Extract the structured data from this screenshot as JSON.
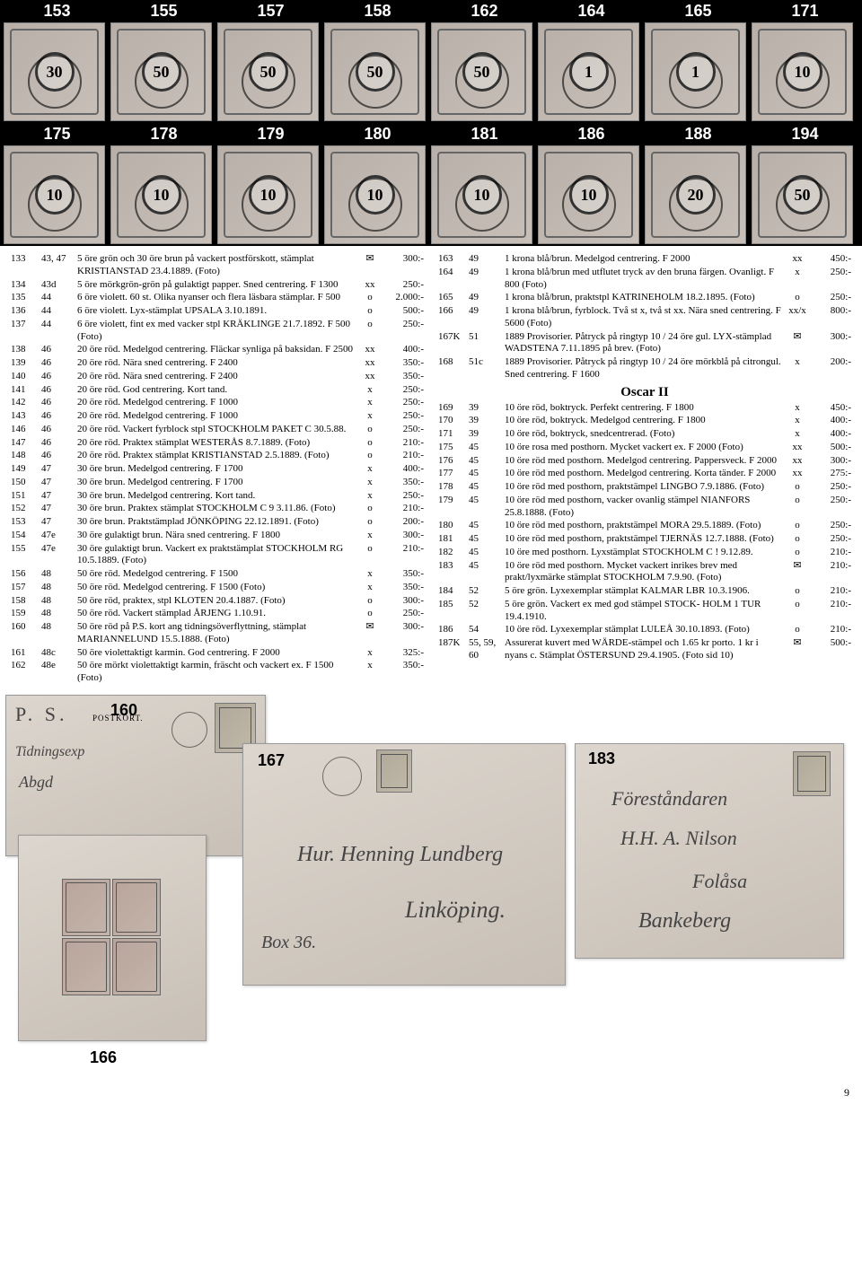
{
  "stamps_row1": [
    {
      "num": "153",
      "val": "30"
    },
    {
      "num": "155",
      "val": "50"
    },
    {
      "num": "157",
      "val": "50"
    },
    {
      "num": "158",
      "val": "50"
    },
    {
      "num": "162",
      "val": "50"
    },
    {
      "num": "164",
      "val": "1"
    },
    {
      "num": "165",
      "val": "1"
    },
    {
      "num": "171",
      "val": "10"
    }
  ],
  "stamps_row2": [
    {
      "num": "175",
      "val": "10"
    },
    {
      "num": "178",
      "val": "10"
    },
    {
      "num": "179",
      "val": "10"
    },
    {
      "num": "180",
      "val": "10"
    },
    {
      "num": "181",
      "val": "10"
    },
    {
      "num": "186",
      "val": "10"
    },
    {
      "num": "188",
      "val": "20"
    },
    {
      "num": "194",
      "val": "50"
    }
  ],
  "left": [
    {
      "lot": "133",
      "fac": "43, 47",
      "desc": "5 öre grön och 30 öre brun på vackert postförskott, stämplat KRISTIANSTAD 23.4.1889. (Foto)",
      "sym": "✉",
      "price": "300:-"
    },
    {
      "lot": "134",
      "fac": "43d",
      "desc": "5 öre mörkgrön-grön på gulaktigt papper. Sned centrering. F 1300",
      "sym": "xx",
      "price": "250:-"
    },
    {
      "lot": "135",
      "fac": "44",
      "desc": "6 öre violett. 60 st. Olika nyanser och flera läsbara stämplar. F 500",
      "sym": "o",
      "price": "2.000:-"
    },
    {
      "lot": "136",
      "fac": "44",
      "desc": "6 öre violett. Lyx-stämplat UPSALA 3.10.1891.",
      "sym": "o",
      "price": "500:-"
    },
    {
      "lot": "137",
      "fac": "44",
      "desc": "6 öre violett, fint ex med vacker stpl KRÄKLINGE 21.7.1892. F 500 (Foto)",
      "sym": "o",
      "price": "250:-"
    },
    {
      "lot": "138",
      "fac": "46",
      "desc": "20 öre röd. Medelgod centrering. Fläckar synliga på baksidan. F 2500",
      "sym": "xx",
      "price": "400:-"
    },
    {
      "lot": "139",
      "fac": "46",
      "desc": "20 öre röd. Nära sned centrering. F 2400",
      "sym": "xx",
      "price": "350:-"
    },
    {
      "lot": "140",
      "fac": "46",
      "desc": "20 öre röd. Nära sned centrering. F 2400",
      "sym": "xx",
      "price": "350:-"
    },
    {
      "lot": "141",
      "fac": "46",
      "desc": "20 öre röd. God centrering. Kort tand.",
      "sym": "x",
      "price": "250:-"
    },
    {
      "lot": "142",
      "fac": "46",
      "desc": "20 öre röd. Medelgod centrering. F 1000",
      "sym": "x",
      "price": "250:-"
    },
    {
      "lot": "143",
      "fac": "46",
      "desc": "20 öre röd. Medelgod centrering. F 1000",
      "sym": "x",
      "price": "250:-"
    },
    {
      "lot": "146",
      "fac": "46",
      "desc": "20 öre röd. Vackert fyrblock stpl STOCKHOLM PAKET C 30.5.88.",
      "sym": "o",
      "price": "250:-"
    },
    {
      "lot": "147",
      "fac": "46",
      "desc": "20 öre röd. Praktex stämplat WESTERÅS 8.7.1889. (Foto)",
      "sym": "o",
      "price": "210:-"
    },
    {
      "lot": "148",
      "fac": "46",
      "desc": "20 öre röd. Praktex stämplat KRISTIANSTAD 2.5.1889. (Foto)",
      "sym": "o",
      "price": "210:-"
    },
    {
      "lot": "149",
      "fac": "47",
      "desc": "30 öre brun. Medelgod centrering. F 1700",
      "sym": "x",
      "price": "400:-"
    },
    {
      "lot": "150",
      "fac": "47",
      "desc": "30 öre brun. Medelgod centrering. F 1700",
      "sym": "x",
      "price": "350:-"
    },
    {
      "lot": "151",
      "fac": "47",
      "desc": "30 öre brun. Medelgod centrering. Kort tand.",
      "sym": "x",
      "price": "250:-"
    },
    {
      "lot": "152",
      "fac": "47",
      "desc": "30 öre brun. Praktex stämplat STOCKHOLM C 9 3.11.86. (Foto)",
      "sym": "o",
      "price": "210:-"
    },
    {
      "lot": "153",
      "fac": "47",
      "desc": "30 öre brun. Praktstämplad JÖNKÖPING 22.12.1891. (Foto)",
      "sym": "o",
      "price": "200:-"
    },
    {
      "lot": "154",
      "fac": "47e",
      "desc": "30 öre gulaktigt brun. Nära sned centrering. F 1800",
      "sym": "x",
      "price": "300:-"
    },
    {
      "lot": "155",
      "fac": "47e",
      "desc": "30 öre gulaktigt brun. Vackert ex praktstämplat STOCKHOLM RG 10.5.1889. (Foto)",
      "sym": "o",
      "price": "210:-"
    },
    {
      "lot": "156",
      "fac": "48",
      "desc": "50 öre röd. Medelgod centrering. F 1500",
      "sym": "x",
      "price": "350:-"
    },
    {
      "lot": "157",
      "fac": "48",
      "desc": "50 öre röd. Medelgod centrering. F 1500 (Foto)",
      "sym": "x",
      "price": "350:-"
    },
    {
      "lot": "158",
      "fac": "48",
      "desc": "50 öre röd, praktex, stpl KLOTEN 20.4.1887. (Foto)",
      "sym": "o",
      "price": "300:-"
    },
    {
      "lot": "159",
      "fac": "48",
      "desc": "50 öre röd. Vackert stämplad ÅRJENG 1.10.91.",
      "sym": "o",
      "price": "250:-"
    },
    {
      "lot": "160",
      "fac": "48",
      "desc": "50 öre röd på P.S. kort ang tidningsöverflyttning, stämplat MARIANNELUND 15.5.1888. (Foto)",
      "sym": "✉",
      "price": "300:-"
    },
    {
      "lot": "161",
      "fac": "48c",
      "desc": "50 öre violettaktigt karmin. God centrering. F 2000",
      "sym": "x",
      "price": "325:-"
    },
    {
      "lot": "162",
      "fac": "48e",
      "desc": "50 öre mörkt violettaktigt karmin, fräscht och vackert ex. F 1500 (Foto)",
      "sym": "x",
      "price": "350:-"
    }
  ],
  "right_a": [
    {
      "lot": "163",
      "fac": "49",
      "desc": "1 krona blå/brun. Medelgod centrering. F 2000",
      "sym": "xx",
      "price": "450:-"
    },
    {
      "lot": "164",
      "fac": "49",
      "desc": "1 krona blå/brun med utflutet tryck av den bruna färgen. Ovanligt. F 800 (Foto)",
      "sym": "x",
      "price": "250:-"
    },
    {
      "lot": "165",
      "fac": "49",
      "desc": "1 krona blå/brun, praktstpl KATRINEHOLM 18.2.1895. (Foto)",
      "sym": "o",
      "price": "250:-"
    },
    {
      "lot": "166",
      "fac": "49",
      "desc": "1 krona blå/brun, fyrblock. Två st x, två st xx. Nära sned centrering. F 5600 (Foto)",
      "sym": "xx/x",
      "price": "800:-"
    },
    {
      "lot": "167K",
      "fac": "51",
      "desc": "1889 Provisorier. Påtryck på ringtyp 10 / 24 öre gul. LYX-stämplad WADSTENA 7.11.1895 på brev. (Foto)",
      "sym": "✉",
      "price": "300:-"
    },
    {
      "lot": "168",
      "fac": "51c",
      "desc": "1889 Provisorier. Påtryck på ringtyp 10 / 24 öre mörkblå på citrongul. Sned centrering. F 1600",
      "sym": "x",
      "price": "200:-"
    }
  ],
  "section_oscar": "Oscar II",
  "right_b": [
    {
      "lot": "169",
      "fac": "39",
      "desc": "10 öre röd, boktryck. Perfekt centrering. F 1800",
      "sym": "x",
      "price": "450:-"
    },
    {
      "lot": "170",
      "fac": "39",
      "desc": "10 öre röd, boktryck. Medelgod centrering. F 1800",
      "sym": "x",
      "price": "400:-"
    },
    {
      "lot": "171",
      "fac": "39",
      "desc": "10 öre röd, boktryck, snedcentrerad. (Foto)",
      "sym": "x",
      "price": "400:-"
    },
    {
      "lot": "175",
      "fac": "45",
      "desc": "10 öre rosa med posthorn. Mycket vackert ex. F 2000 (Foto)",
      "sym": "xx",
      "price": "500:-"
    },
    {
      "lot": "176",
      "fac": "45",
      "desc": "10 öre röd med posthorn. Medelgod centrering. Pappersveck. F 2000",
      "sym": "xx",
      "price": "300:-"
    },
    {
      "lot": "177",
      "fac": "45",
      "desc": "10 öre röd med posthorn. Medelgod centrering. Korta tänder. F 2000",
      "sym": "xx",
      "price": "275:-"
    },
    {
      "lot": "178",
      "fac": "45",
      "desc": "10 öre röd med posthorn, praktstämpel LINGBO 7.9.1886. (Foto)",
      "sym": "o",
      "price": "250:-"
    },
    {
      "lot": "179",
      "fac": "45",
      "desc": "10 öre röd med posthorn, vacker ovanlig stämpel NIANFORS 25.8.1888. (Foto)",
      "sym": "o",
      "price": "250:-"
    },
    {
      "lot": "180",
      "fac": "45",
      "desc": "10 öre röd med posthorn, praktstämpel MORA 29.5.1889. (Foto)",
      "sym": "o",
      "price": "250:-"
    },
    {
      "lot": "181",
      "fac": "45",
      "desc": "10 öre röd med posthorn, praktstämpel TJERNÄS 12.7.1888. (Foto)",
      "sym": "o",
      "price": "250:-"
    },
    {
      "lot": "182",
      "fac": "45",
      "desc": "10 öre med posthorn. Lyxstämplat STOCKHOLM C ! 9.12.89.",
      "sym": "o",
      "price": "210:-"
    },
    {
      "lot": "183",
      "fac": "45",
      "desc": "10 öre röd med posthorn. Mycket vackert inrikes brev med prakt/lyxmärke stämplat STOCKHOLM 7.9.90. (Foto)",
      "sym": "✉",
      "price": "210:-"
    },
    {
      "lot": "184",
      "fac": "52",
      "desc": "5 öre grön. Lyxexemplar stämplat KALMAR LBR 10.3.1906.",
      "sym": "o",
      "price": "210:-"
    },
    {
      "lot": "185",
      "fac": "52",
      "desc": "5 öre grön. Vackert ex med god stämpel STOCK- HOLM 1 TUR 19.4.1910.",
      "sym": "o",
      "price": "210:-"
    },
    {
      "lot": "186",
      "fac": "54",
      "desc": "10 öre röd. Lyxexemplar stämplat LULEÅ 30.10.1893. (Foto)",
      "sym": "o",
      "price": "210:-"
    },
    {
      "lot": "187K",
      "fac": "55, 59, 60",
      "desc": "Assurerat kuvert med WÄRDE-stämpel och 1.65 kr porto. 1 kr i nyans c. Stämplat ÖSTERSUND 29.4.1905. (Foto sid 10)",
      "sym": "✉",
      "price": "500:-"
    }
  ],
  "fig_labels": {
    "a": "160",
    "b": "167",
    "c": "183",
    "d": "166"
  },
  "fig160_ps": "P. S.",
  "fig160_postkort": "POSTKORT.",
  "fig167_addr1": "Hur. Henning Lundberg",
  "fig167_addr2": "Linköping.",
  "fig167_box": "Box 36.",
  "fig183_addr1": "Föreståndaren",
  "fig183_addr2": "H.H. A. Nilson",
  "fig183_addr3": "Folåsa",
  "fig183_addr4": "Bankeberg",
  "page_number": "9"
}
